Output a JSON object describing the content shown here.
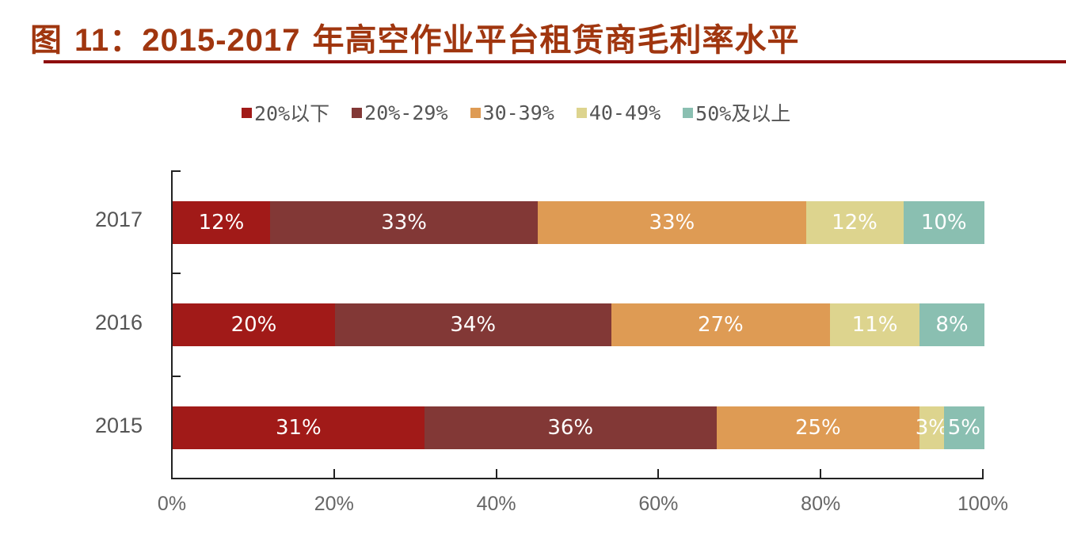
{
  "title": {
    "prefix": "图 ",
    "number": "11：2015-2017",
    "suffix": " 年高空作业平台租赁商毛利率水平"
  },
  "legend": [
    {
      "label": "20%以下",
      "color": "#A11A18"
    },
    {
      "label": "20%-29%",
      "color": "#823836"
    },
    {
      "label": "30-39%",
      "color": "#DE9B54"
    },
    {
      "label": "40-49%",
      "color": "#DDD48E"
    },
    {
      "label": "50%及以上",
      "color": "#8ABFB1"
    }
  ],
  "x_ticks": [
    "0%",
    "20%",
    "40%",
    "60%",
    "80%",
    "100%"
  ],
  "rows": [
    {
      "year": "2017",
      "labels": [
        "12%",
        "33%",
        "33%",
        "12%",
        "10%"
      ]
    },
    {
      "year": "2016",
      "labels": [
        "20%",
        "34%",
        "27%",
        "11%",
        "8%"
      ]
    },
    {
      "year": "2015",
      "labels": [
        "31%",
        "36%",
        "25%",
        "3%",
        "5%"
      ]
    }
  ],
  "chart_data": {
    "type": "bar",
    "orientation": "horizontal",
    "stacked": "percent",
    "title": "图 11：2015-2017 年高空作业平台租赁商毛利率水平",
    "categories": [
      "2017",
      "2016",
      "2015"
    ],
    "series": [
      {
        "name": "20%以下",
        "color": "#A11A18",
        "values": [
          12,
          20,
          31
        ]
      },
      {
        "name": "20%-29%",
        "color": "#823836",
        "values": [
          33,
          34,
          36
        ]
      },
      {
        "name": "30-39%",
        "color": "#DE9B54",
        "values": [
          33,
          27,
          25
        ]
      },
      {
        "name": "40-49%",
        "color": "#DDD48E",
        "values": [
          12,
          11,
          3
        ]
      },
      {
        "name": "50%及以上",
        "color": "#8ABFB1",
        "values": [
          10,
          8,
          5
        ]
      }
    ],
    "xlabel": "",
    "ylabel": "",
    "xlim": [
      0,
      100
    ],
    "x_tick_labels": [
      "0%",
      "20%",
      "40%",
      "60%",
      "80%",
      "100%"
    ],
    "legend_position": "top",
    "grid": false,
    "data_labels": true
  }
}
